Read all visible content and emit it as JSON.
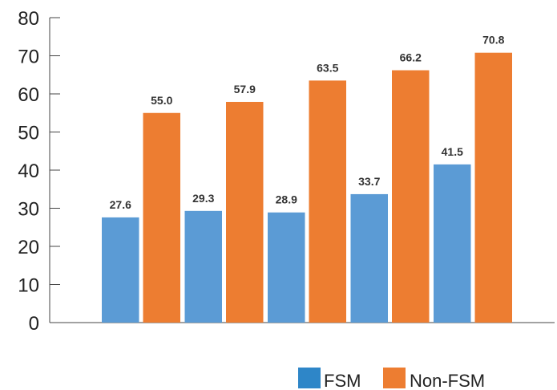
{
  "chart_data": {
    "type": "bar",
    "categories": [
      "",
      "",
      "",
      "",
      ""
    ],
    "series": [
      {
        "name": "FSM",
        "color": "#5b9bd5",
        "legend_color": "#2e86c8",
        "values": [
          27.6,
          29.3,
          28.9,
          33.7,
          41.5
        ],
        "labels": [
          "27.6",
          "29.3",
          "28.9",
          "33.7",
          "41.5"
        ]
      },
      {
        "name": "Non-FSM",
        "color": "#ed7d31",
        "legend_color": "#ed7d31",
        "values": [
          55.0,
          57.9,
          63.5,
          66.2,
          70.8
        ],
        "labels": [
          "55.0",
          "57.9",
          "63.5",
          "66.2",
          "70.8"
        ]
      }
    ],
    "ylim": [
      0,
      80
    ],
    "yticks": [
      0,
      10,
      20,
      30,
      40,
      50,
      60,
      70,
      80
    ],
    "grid": false,
    "legend_position": "bottom-right",
    "title": "",
    "xlabel": "",
    "ylabel": ""
  }
}
